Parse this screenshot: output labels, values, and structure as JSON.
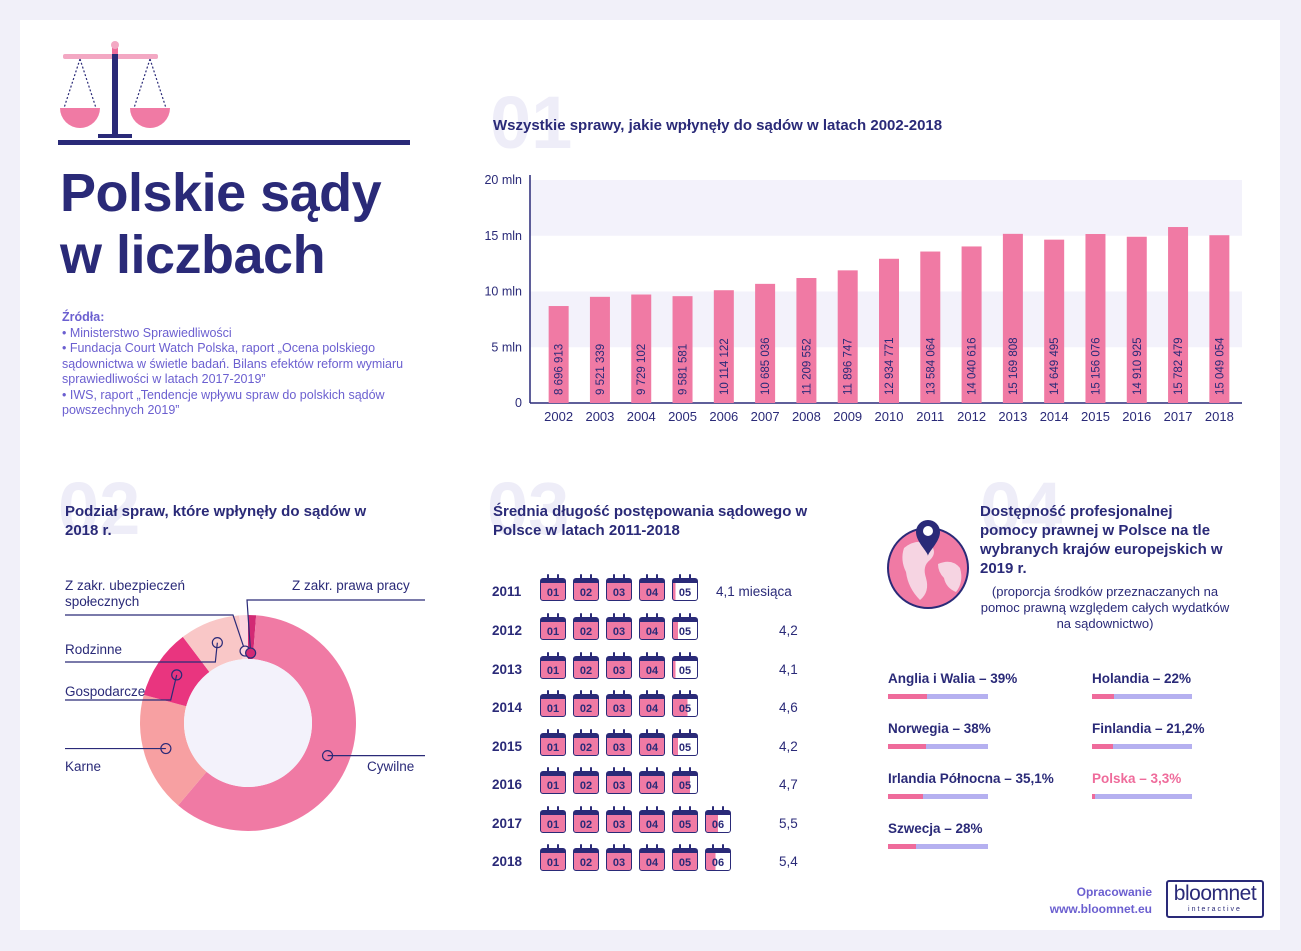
{
  "title": {
    "line1": "Polskie sądy",
    "line2": "w liczbach"
  },
  "sources": {
    "heading": "Źródła:",
    "items": [
      "• Ministerstwo Sprawiedliwości",
      "• Fundacja Court Watch Polska, raport „Ocena polskiego sądownictwa w świetle badań. Bilans efektów reform wymiaru sprawiedliwości w latach 2017-2019”",
      "• IWS, raport „Tendencje wpływu spraw do polskich sądów powszechnych 2019”"
    ]
  },
  "section_numbers": [
    "01",
    "02",
    "03",
    "04"
  ],
  "section1": {
    "title": "Wszystkie sprawy, jakie wpłynęły do sądów w latach 2002-2018"
  },
  "section2": {
    "title": "Podział spraw, które wpłynęły do sądów w 2018 r."
  },
  "section3": {
    "title": "Średnia długość postępowania sądowego w Polsce w latach 2011-2018"
  },
  "section4": {
    "title": "Dostępność profesjonalnej pomocy prawnej w Polsce na tle wybranych krajów europejskich w 2019 r.",
    "note": "(proporcja środków przeznaczanych na pomoc prawną względem całych wydatków na sądownictwo)"
  },
  "chart_data": [
    {
      "type": "bar",
      "title": "Wszystkie sprawy, jakie wpłynęły do sądów w latach 2002-2018",
      "categories": [
        "2002",
        "2003",
        "2004",
        "2005",
        "2006",
        "2007",
        "2008",
        "2009",
        "2010",
        "2011",
        "2012",
        "2013",
        "2014",
        "2015",
        "2016",
        "2017",
        "2018"
      ],
      "values": [
        8696913,
        9521339,
        9729102,
        9581581,
        10114122,
        10685036,
        11209552,
        11896747,
        12934771,
        13584064,
        14040616,
        15169808,
        14649495,
        15156076,
        14910925,
        15782479,
        15049054
      ],
      "data_labels": [
        "8 696 913",
        "9 521 339",
        "9 729 102",
        "9 581 581",
        "10 114 122",
        "10 685 036",
        "11 209 552",
        "11 896 747",
        "12 934 771",
        "13 584 064",
        "14 040 616",
        "15 169 808",
        "14 649 495",
        "15 156 076",
        "14 910 925",
        "15 782 479",
        "15 049 054"
      ],
      "y_ticks": [
        0,
        5000000,
        10000000,
        15000000,
        20000000
      ],
      "y_tick_labels": [
        "0",
        "5 mln",
        "10 mln",
        "15 mln",
        "20 mln"
      ],
      "ylim": [
        0,
        20000000
      ],
      "bar_color": "#f07aa4",
      "band_color": "#f3f2fb"
    },
    {
      "type": "pie",
      "title": "Podział spraw, które wpłynęły do sądów w 2018 r.",
      "slices": [
        {
          "label": "Cywilne",
          "value": 60.0,
          "color": "#f07aa4"
        },
        {
          "label": "Karne",
          "value": 18.0,
          "color": "#f7a0a2"
        },
        {
          "label": "Gospodarcze",
          "value": 10.5,
          "color": "#e9357f"
        },
        {
          "label": "Rodzinne",
          "value": 9.0,
          "color": "#f9c7c7"
        },
        {
          "label": "Z zakr. ubezpieczeń społecznych",
          "value": 1.3,
          "color": "#fcd6df"
        },
        {
          "label": "Z zakr. prawa pracy",
          "value": 1.2,
          "color": "#d22a74"
        }
      ]
    },
    {
      "type": "table",
      "title": "Średnia długość postępowania sądowego w Polsce w latach 2011-2018",
      "unit_label": "miesiąca",
      "rows": [
        {
          "year": "2011",
          "value": 4.1,
          "label": "4,1 miesiąca"
        },
        {
          "year": "2012",
          "value": 4.2,
          "label": "4,2"
        },
        {
          "year": "2013",
          "value": 4.1,
          "label": "4,1"
        },
        {
          "year": "2014",
          "value": 4.6,
          "label": "4,6"
        },
        {
          "year": "2015",
          "value": 4.2,
          "label": "4,2"
        },
        {
          "year": "2016",
          "value": 4.7,
          "label": "4,7"
        },
        {
          "year": "2017",
          "value": 5.5,
          "label": "5,5"
        },
        {
          "year": "2018",
          "value": 5.4,
          "label": "5,4"
        }
      ],
      "calendar_labels": [
        "01",
        "02",
        "03",
        "04",
        "05",
        "06"
      ]
    },
    {
      "type": "bar",
      "title": "Dostępność profesjonalnej pomocy prawnej",
      "items": [
        {
          "label": "Anglia i Walia – 39%",
          "value": 39,
          "highlight": false
        },
        {
          "label": "Holandia – 22%",
          "value": 22,
          "highlight": false
        },
        {
          "label": "Norwegia – 38%",
          "value": 38,
          "highlight": false
        },
        {
          "label": "Finlandia – 21,2%",
          "value": 21.2,
          "highlight": false
        },
        {
          "label": "Irlandia Północna – 35,1%",
          "value": 35.1,
          "highlight": false
        },
        {
          "label": "Polska – 3,3%",
          "value": 3.3,
          "highlight": true
        },
        {
          "label": "Szwecja – 28%",
          "value": 28,
          "highlight": false
        }
      ]
    }
  ],
  "footer": {
    "label": "Opracowanie",
    "url": "www.bloomnet.eu",
    "logo_main": "bloomnet",
    "logo_sub": "interactive"
  },
  "colors": {
    "navy": "#2a2a78",
    "pink": "#f07aa4",
    "violet": "#6b5fd0",
    "lavender": "#b5b0f0"
  }
}
